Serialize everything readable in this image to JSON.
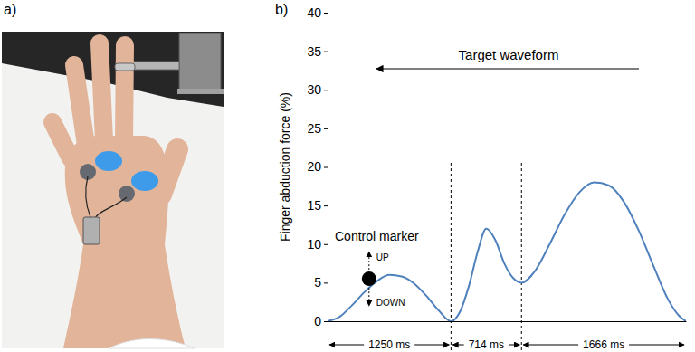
{
  "panel_labels": [
    "a)",
    "b)"
  ],
  "chart_data": {
    "type": "line",
    "y_label": "Finger abduction force (%)",
    "annotation": "Target waveform",
    "x": [
      0,
      125,
      250,
      375,
      500,
      625,
      750,
      875,
      1000,
      1125,
      1250,
      1340,
      1430,
      1520,
      1607,
      1700,
      1790,
      1880,
      1964,
      2100,
      2250,
      2400,
      2550,
      2700,
      2850,
      3000,
      3150,
      3300,
      3450,
      3560,
      3630
    ],
    "values": [
      0,
      0.6,
      2.1,
      3.8,
      5.2,
      6.0,
      5.8,
      4.9,
      3.3,
      1.4,
      0,
      1.2,
      4.5,
      9.0,
      12.0,
      10.5,
      7.5,
      5.6,
      5.0,
      6.5,
      10.0,
      13.8,
      16.7,
      18.0,
      17.6,
      15.5,
      11.8,
      7.2,
      2.8,
      0.7,
      0
    ],
    "color": "#4f81bd",
    "xlim": [
      0,
      3630
    ],
    "ylim": [
      0,
      40
    ],
    "yticks": [
      0,
      5,
      10,
      15,
      20,
      25,
      30,
      35,
      40
    ],
    "tick_labels": "y",
    "grid": false,
    "control_marker": {
      "label": "Control marker",
      "x": 420,
      "y": 5.5,
      "color": "#000000",
      "up": "UP",
      "down": "DOWN"
    },
    "segments": [
      {
        "start": 0,
        "end": 1250,
        "label": "1250 ms"
      },
      {
        "start": 1250,
        "end": 1964,
        "label": "714 ms"
      },
      {
        "start": 1964,
        "end": 3630,
        "label": "1666 ms"
      }
    ]
  }
}
